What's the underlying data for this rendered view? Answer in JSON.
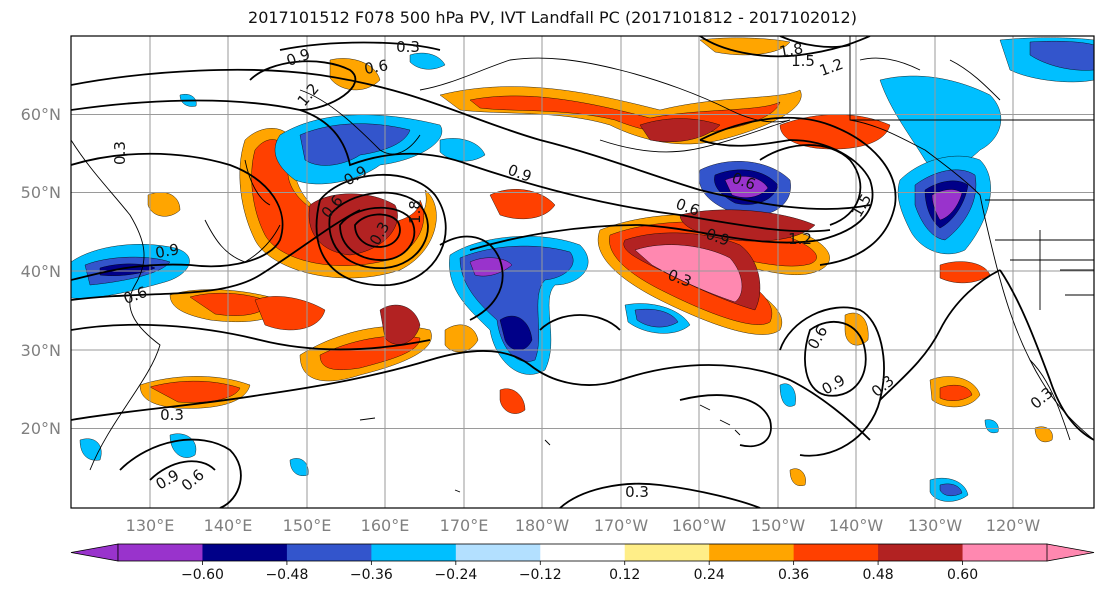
{
  "title": "2017101512 F078 500 hPa PV, IVT Landfall PC (2017101812 - 2017102012)",
  "lat_labels": [
    "60°N",
    "50°N",
    "40°N",
    "30°N",
    "20°N"
  ],
  "lon_labels": [
    "130°E",
    "140°E",
    "150°E",
    "160°E",
    "170°E",
    "180°W",
    "170°W",
    "160°W",
    "150°W",
    "140°W",
    "130°W",
    "120°W"
  ],
  "colorbar": {
    "colors": [
      "#9933cc",
      "#000088",
      "#3355cc",
      "#00bfff",
      "#b3e0ff",
      "#ffffff",
      "#ffee88",
      "#ffa500",
      "#ff4000",
      "#b22222",
      "#ff88b0"
    ],
    "ticks": [
      "−0.60",
      "−0.48",
      "−0.36",
      "−0.24",
      "−0.12",
      "0.12",
      "0.24",
      "0.36",
      "0.48",
      "0.60"
    ]
  },
  "contour_labels": [
    "0.9",
    "0.3",
    "0.6",
    "1.2",
    "1.8",
    "1.5",
    "1.2",
    "0.9",
    "0.6",
    "0.3",
    "1.8",
    "0.9",
    "0.6",
    "0.9",
    "0.6",
    "1.2",
    "0.3",
    "0.6",
    "0.9",
    "0.3",
    "0.3",
    "1.5",
    "0.3",
    "0.9",
    "0.6",
    "0.3",
    "0.3",
    "0.6",
    "0.9"
  ]
}
